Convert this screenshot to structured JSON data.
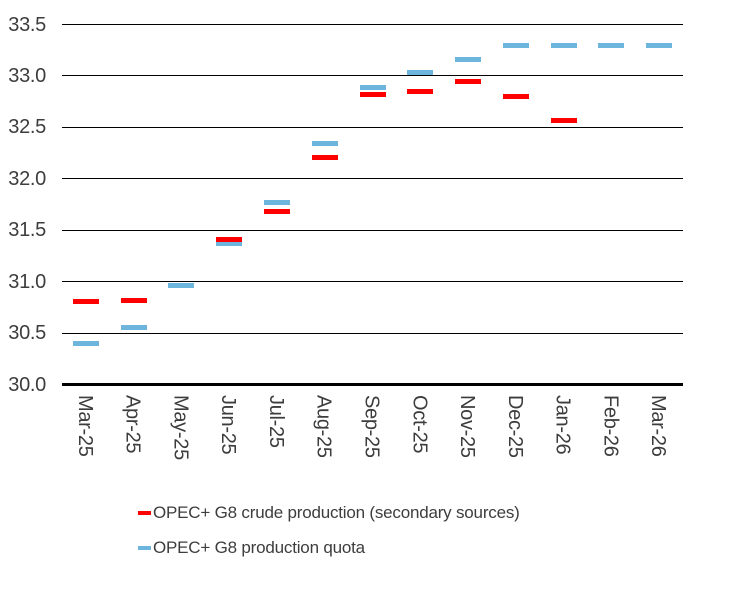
{
  "chart_data": {
    "type": "scatter",
    "marker": "dash",
    "title": "",
    "xlabel": "",
    "ylabel": "",
    "ylim": [
      30.0,
      33.5
    ],
    "y_step": 0.5,
    "grid": "horizontal",
    "legend_position": "bottom-left",
    "categories": [
      "Mar-25",
      "Apr-25",
      "May-25",
      "Jun-25",
      "Jul-25",
      "Aug-25",
      "Sep-25",
      "Oct-25",
      "Nov-25",
      "Dec-25",
      "Jan-26",
      "Feb-26",
      "Mar-26"
    ],
    "series": [
      {
        "name": "OPEC+ G8 crude production (secondary sources)",
        "color": "#ff0000",
        "values": [
          30.81,
          30.82,
          null,
          31.41,
          31.68,
          32.21,
          32.82,
          32.85,
          32.95,
          32.8,
          32.57,
          null,
          null
        ]
      },
      {
        "name": "OPEC+ G8 production quota",
        "color": "#6eb5de",
        "values": [
          30.4,
          30.55,
          30.96,
          31.37,
          31.77,
          32.34,
          32.89,
          33.03,
          33.16,
          33.3,
          33.3,
          33.3,
          33.3
        ]
      }
    ],
    "y_tick_labels": [
      "33.5",
      "33.0",
      "32.5",
      "32.0",
      "31.5",
      "31.0",
      "30.5",
      "30.0"
    ]
  },
  "colors": {
    "grid": "#000000",
    "axis": "#000000",
    "text": "#3d3d3d",
    "background": "#ffffff"
  }
}
